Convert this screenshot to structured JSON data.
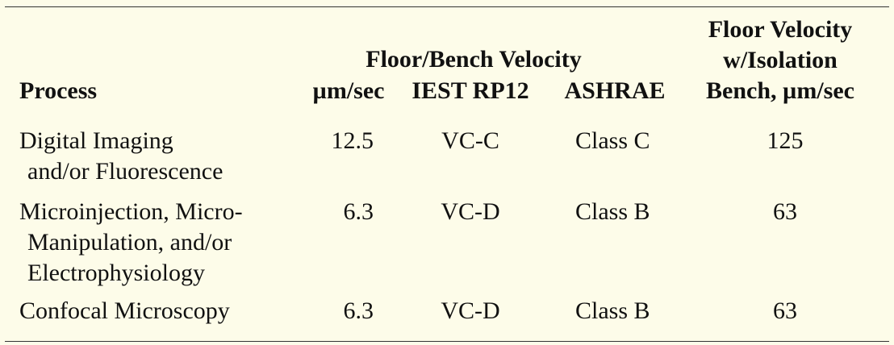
{
  "table": {
    "group_header": "Floor/Bench Velocity",
    "columns": [
      [
        "Process"
      ],
      [
        "µm/sec"
      ],
      [
        "IEST RP12"
      ],
      [
        "ASHRAE"
      ],
      [
        "Floor Velocity",
        "w/Isolation",
        "Bench, µm/sec"
      ]
    ],
    "rows": [
      {
        "process": [
          "Digital Imaging",
          "and/or Fluorescence"
        ],
        "velocity": "12.5",
        "iest": "VC-C",
        "ashrae": "Class C",
        "isolation": "125"
      },
      {
        "process": [
          "Microinjection, Micro-",
          "Manipulation, and/or",
          "Electrophysiology"
        ],
        "velocity": "6.3",
        "iest": "VC-D",
        "ashrae": "Class B",
        "isolation": "63"
      },
      {
        "process": [
          "Confocal Microscopy"
        ],
        "velocity": "6.3",
        "iest": "VC-D",
        "ashrae": "Class B",
        "isolation": "63"
      }
    ]
  }
}
